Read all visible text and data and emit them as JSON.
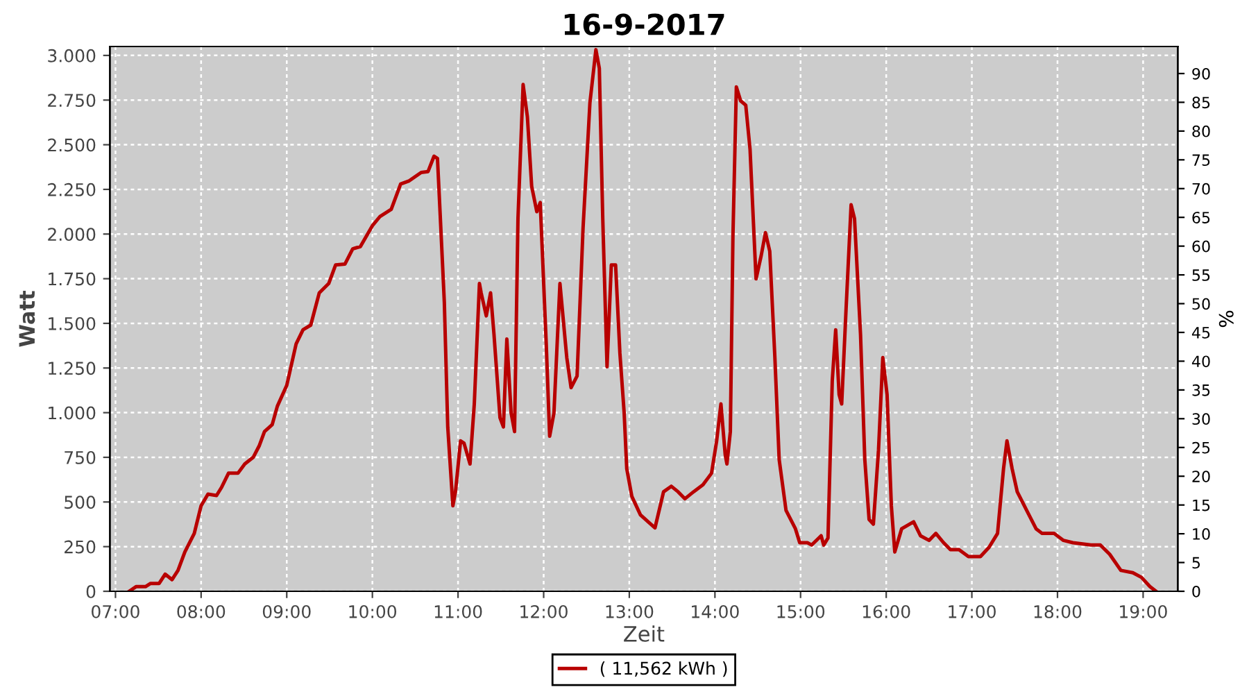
{
  "chart_data": {
    "type": "line",
    "title": "16-9-2017",
    "xlabel": "Zeit",
    "ylabel": "Watt",
    "y2label": "%",
    "xlim": [
      6.935,
      19.405
    ],
    "xticks": [
      {
        "value": 7,
        "label": "07:00"
      },
      {
        "value": 8,
        "label": "08:00"
      },
      {
        "value": 9,
        "label": "09:00"
      },
      {
        "value": 10,
        "label": "10:00"
      },
      {
        "value": 11,
        "label": "11:00"
      },
      {
        "value": 12,
        "label": "12:00"
      },
      {
        "value": 13,
        "label": "13:00"
      },
      {
        "value": 14,
        "label": "14:00"
      },
      {
        "value": 15,
        "label": "15:00"
      },
      {
        "value": 16,
        "label": "16:00"
      },
      {
        "value": 17,
        "label": "17:00"
      },
      {
        "value": 18,
        "label": "18:00"
      },
      {
        "value": 19,
        "label": "19:00"
      }
    ],
    "ylim": [
      0,
      3050
    ],
    "yticks": [
      0,
      250,
      500,
      750,
      {
        "value": 1000,
        "label": "1.000"
      },
      {
        "value": 1250,
        "label": "1.250"
      },
      {
        "value": 1500,
        "label": "1.500"
      },
      {
        "value": 1750,
        "label": "1.750"
      },
      {
        "value": 2000,
        "label": "2.000"
      },
      {
        "value": 2250,
        "label": "2.250"
      },
      {
        "value": 2500,
        "label": "2.500"
      },
      {
        "value": 2750,
        "label": "2.750"
      },
      {
        "value": 3000,
        "label": "3.000"
      }
    ],
    "y2lim": [
      0,
      94.7
    ],
    "y2ticks": [
      0,
      5,
      10,
      15,
      20,
      25,
      30,
      35,
      40,
      45,
      50,
      55,
      60,
      65,
      70,
      75,
      80,
      85,
      90
    ],
    "grid": true,
    "legend": "bottom",
    "marker": "none",
    "line_style": "solid",
    "series": [
      {
        "name": "( 11,562 kWh )",
        "color": "#b80000",
        "x": [
          7.16,
          7.24,
          7.35,
          7.41,
          7.51,
          7.58,
          7.66,
          7.73,
          7.81,
          7.92,
          8.0,
          8.08,
          8.18,
          8.24,
          8.32,
          8.43,
          8.51,
          8.61,
          8.68,
          8.74,
          8.83,
          8.89,
          9.0,
          9.11,
          9.19,
          9.28,
          9.38,
          9.49,
          9.57,
          9.68,
          9.77,
          9.86,
          10.0,
          10.09,
          10.22,
          10.33,
          10.43,
          10.57,
          10.65,
          10.72,
          10.76,
          10.79,
          10.84,
          10.88,
          10.94,
          10.97,
          11.03,
          11.07,
          11.14,
          11.19,
          11.25,
          11.27,
          11.33,
          11.38,
          11.42,
          11.49,
          11.53,
          11.57,
          11.62,
          11.66,
          11.7,
          11.76,
          11.81,
          11.86,
          11.92,
          11.96,
          12.03,
          12.07,
          12.12,
          12.19,
          12.27,
          12.32,
          12.39,
          12.46,
          12.54,
          12.61,
          12.65,
          12.69,
          12.74,
          12.79,
          12.84,
          12.89,
          12.94,
          12.97,
          13.03,
          13.13,
          13.22,
          13.3,
          13.4,
          13.49,
          13.57,
          13.65,
          13.75,
          13.86,
          13.96,
          14.02,
          14.07,
          14.12,
          14.14,
          14.18,
          14.21,
          14.25,
          14.3,
          14.36,
          14.41,
          14.48,
          14.54,
          14.59,
          14.64,
          14.7,
          14.75,
          14.83,
          14.94,
          14.99,
          15.08,
          15.13,
          15.24,
          15.27,
          15.32,
          15.37,
          15.41,
          15.45,
          15.48,
          15.53,
          15.59,
          15.63,
          15.7,
          15.75,
          15.8,
          15.85,
          15.91,
          15.96,
          16.01,
          16.06,
          16.1,
          16.18,
          16.32,
          16.4,
          16.5,
          16.58,
          16.67,
          16.75,
          16.85,
          16.96,
          17.1,
          17.2,
          17.3,
          17.37,
          17.41,
          17.47,
          17.53,
          17.64,
          17.75,
          17.82,
          17.96,
          18.07,
          18.18,
          18.39,
          18.5,
          18.61,
          18.74,
          18.88,
          18.98,
          19.08,
          19.15
        ],
        "values": [
          0,
          26,
          26,
          44,
          44,
          96,
          65,
          117,
          220,
          324,
          479,
          544,
          536,
          583,
          661,
          661,
          713,
          751,
          816,
          894,
          933,
          1036,
          1153,
          1386,
          1464,
          1490,
          1671,
          1723,
          1827,
          1832,
          1917,
          1930,
          2047,
          2099,
          2138,
          2280,
          2298,
          2345,
          2350,
          2436,
          2423,
          2125,
          1619,
          920,
          479,
          557,
          842,
          829,
          713,
          1049,
          1723,
          1671,
          1542,
          1671,
          1438,
          972,
          920,
          1412,
          998,
          894,
          2086,
          2837,
          2656,
          2267,
          2125,
          2176,
          1386,
          868,
          998,
          1723,
          1308,
          1140,
          1205,
          2034,
          2734,
          3032,
          2928,
          2086,
          1257,
          1827,
          1827,
          1334,
          998,
          687,
          531,
          428,
          389,
          355,
          557,
          588,
          557,
          518,
          557,
          596,
          661,
          842,
          1049,
          764,
          713,
          894,
          1982,
          2824,
          2746,
          2721,
          2474,
          1749,
          1879,
          2008,
          1904,
          1308,
          738,
          453,
          350,
          272,
          272,
          259,
          311,
          259,
          298,
          1179,
          1464,
          1101,
          1049,
          1568,
          2164,
          2086,
          1438,
          738,
          402,
          376,
          790,
          1308,
          1101,
          479,
          220,
          350,
          389,
          311,
          285,
          324,
          272,
          233,
          233,
          194,
          194,
          246,
          324,
          687,
          842,
          687,
          557,
          453,
          350,
          324,
          324,
          285,
          272,
          259,
          259,
          207,
          117,
          104,
          78,
          26,
          0
        ]
      }
    ]
  }
}
